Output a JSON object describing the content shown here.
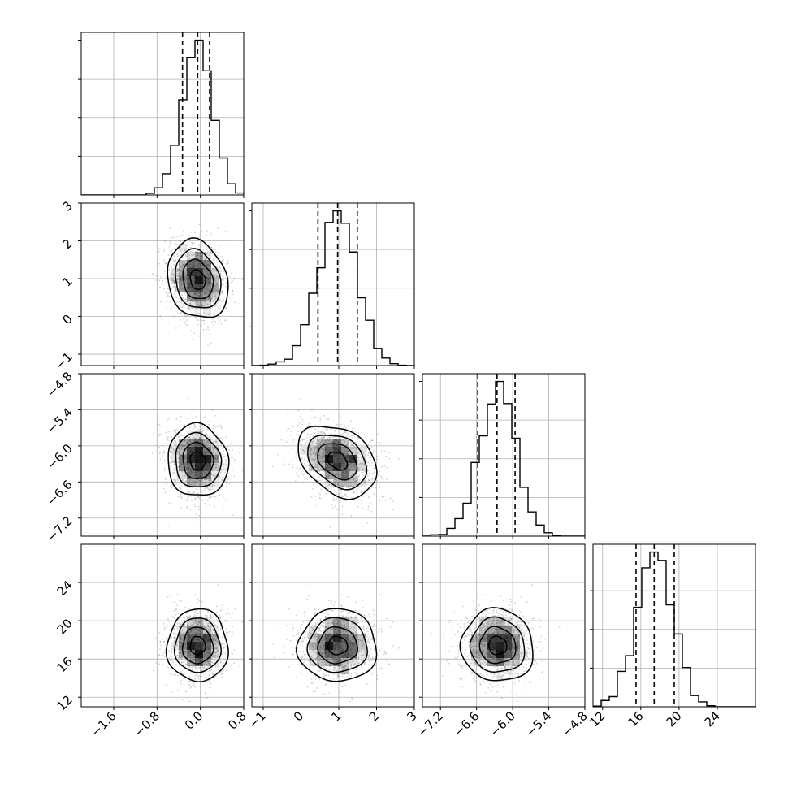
{
  "chart_data": {
    "type": "corner",
    "parameters": [
      {
        "name": "",
        "range": [
          -2.2,
          0.8
        ],
        "ticks": [
          -1.6,
          -0.8,
          0.0,
          0.8
        ],
        "tick_labels": [
          "−1.6",
          "−0.8",
          "0.0",
          "0.8"
        ],
        "mean": -0.05,
        "sigma": 0.28,
        "quantiles": [
          -0.33,
          -0.05,
          0.17
        ]
      },
      {
        "name": "",
        "range": [
          -1.3,
          3.0
        ],
        "ticks": [
          -1,
          0,
          1,
          2,
          3
        ],
        "tick_labels": [
          "−1",
          "0",
          "1",
          "2",
          "3"
        ],
        "mean": 0.97,
        "sigma": 0.52,
        "quantiles": [
          0.45,
          0.97,
          1.49
        ]
      },
      {
        "name": "",
        "range": [
          -7.5,
          -4.8
        ],
        "ticks": [
          -7.2,
          -6.6,
          -6.0,
          -5.4,
          -4.8
        ],
        "tick_labels": [
          "−7.2",
          "−6.6",
          "−6.0",
          "−5.4",
          "−4.8"
        ],
        "mean": -6.25,
        "sigma": 0.3,
        "quantiles": [
          -6.58,
          -6.26,
          -5.96
        ]
      },
      {
        "name": "",
        "range": [
          11,
          28
        ],
        "ticks": [
          12,
          16,
          20,
          24
        ],
        "tick_labels": [
          "12",
          "16",
          "20",
          "24"
        ],
        "mean": 17.4,
        "sigma": 1.9,
        "quantiles": [
          15.5,
          17.4,
          19.5
        ]
      }
    ],
    "correlations": [
      [
        1,
        -0.18,
        -0.05,
        0.0
      ],
      [
        -0.18,
        1,
        -0.33,
        0.0
      ],
      [
        -0.05,
        -0.33,
        1,
        -0.05
      ],
      [
        0.0,
        0.0,
        -0.05,
        1
      ]
    ],
    "histogram_bins": 20,
    "contour_levels": [
      0.5,
      1.0,
      1.5,
      2.0
    ],
    "grid": true,
    "scatter_color": "#808080",
    "line_color": "#000000",
    "density_color": "#000000"
  }
}
